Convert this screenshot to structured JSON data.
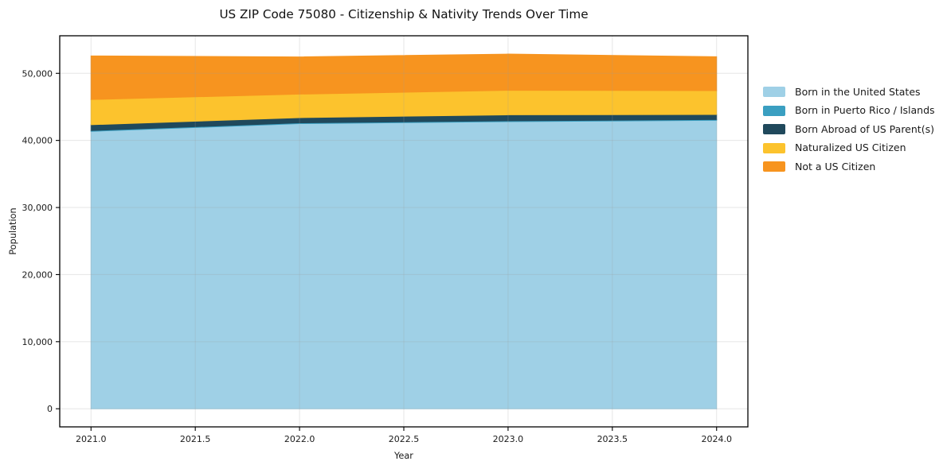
{
  "chart_data": {
    "type": "area",
    "stacked": true,
    "title": "US ZIP Code 75080 - Citizenship & Nativity Trends Over Time",
    "xlabel": "Year",
    "ylabel": "Population",
    "x": [
      2021,
      2022,
      2023,
      2024
    ],
    "series": [
      {
        "name": "Born in the United States",
        "color": "#9fd0e6",
        "values": [
          41350,
          42500,
          42800,
          43000
        ]
      },
      {
        "name": "Born in Puerto Rico / Islands",
        "color": "#3a9fc1",
        "values": [
          120,
          120,
          120,
          120
        ]
      },
      {
        "name": "Born Abroad of US Parent(s)",
        "color": "#20495c",
        "values": [
          870,
          780,
          900,
          750
        ]
      },
      {
        "name": "Naturalized US Citizen",
        "color": "#fcc32d",
        "values": [
          3760,
          3500,
          3650,
          3550
        ]
      },
      {
        "name": "Not a US Citizen",
        "color": "#f7941f",
        "values": [
          6500,
          5550,
          5400,
          5050
        ]
      }
    ],
    "x_tick_values": [
      2021.0,
      2021.5,
      2022.0,
      2022.5,
      2023.0,
      2023.5,
      2024.0
    ],
    "x_tick_labels": [
      "2021.0",
      "2021.5",
      "2022.0",
      "2022.5",
      "2023.0",
      "2023.5",
      "2024.0"
    ],
    "y_tick_values": [
      0,
      10000,
      20000,
      30000,
      40000,
      50000
    ],
    "y_tick_labels": [
      "0",
      "10,000",
      "20,000",
      "30,000",
      "40,000",
      "50,000"
    ],
    "xlim": [
      2020.85,
      2024.15
    ],
    "ylim": [
      -2700,
      55600
    ],
    "grid": true,
    "legend_position": "right-outside",
    "colors": {
      "spine": "#000000",
      "gridline": "#9c9c9c",
      "background": "#ffffff"
    }
  }
}
